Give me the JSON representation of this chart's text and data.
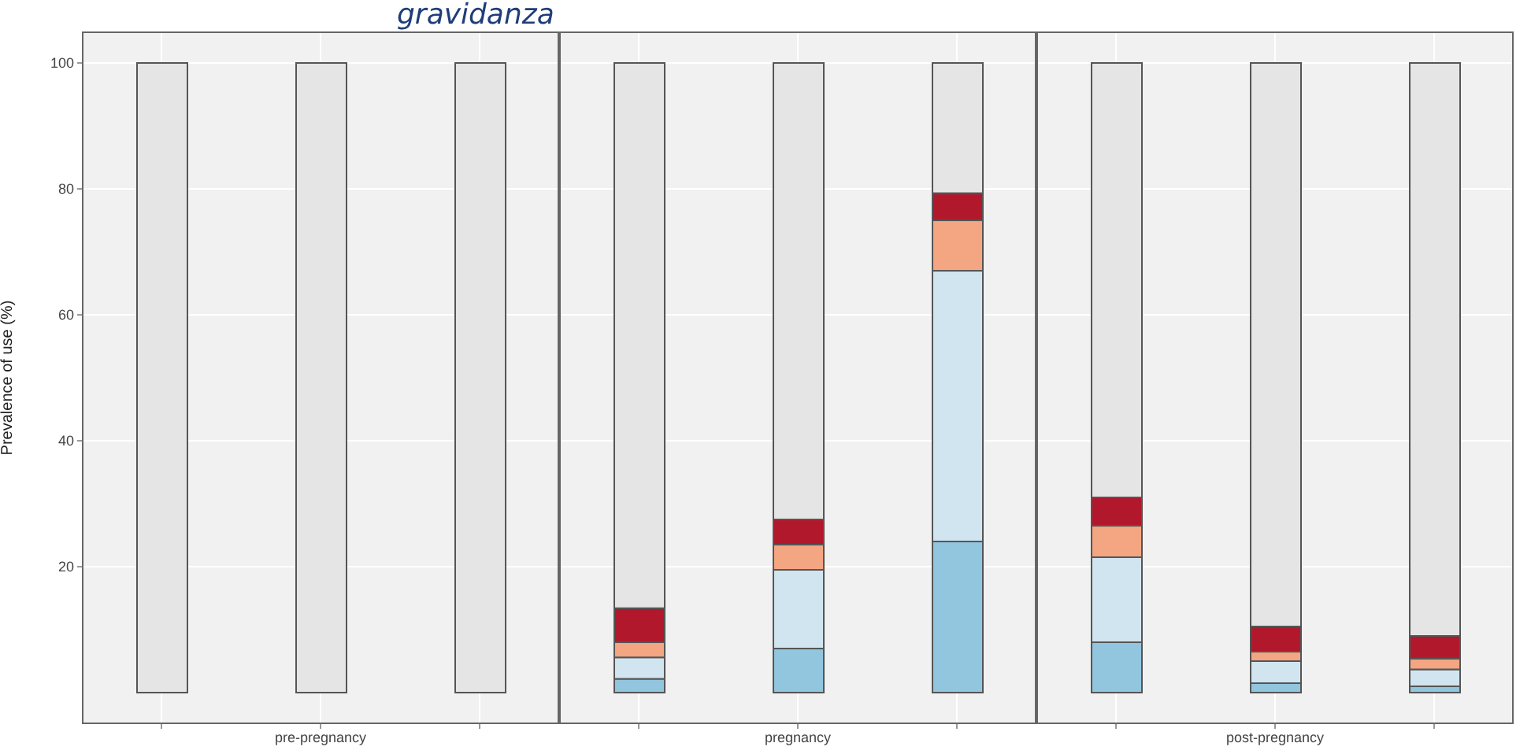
{
  "chart_data": [
    {
      "type": "bar",
      "stacked": true,
      "ylabel": "Prevalence of use (%)",
      "annotations": [
        "gravidanza"
      ],
      "categories": [
        null,
        "pre-pregnancy",
        null
      ],
      "ylim": [
        -5,
        105
      ],
      "yticks": [
        20,
        40,
        60,
        80,
        100
      ],
      "grid": true,
      "series": [
        {
          "color": "#92c5de",
          "values": [
            0,
            0,
            0
          ]
        },
        {
          "color": "#d1e5f0",
          "values": [
            0,
            0,
            0
          ]
        },
        {
          "color": "#f4a582",
          "values": [
            0,
            0,
            0
          ]
        },
        {
          "color": "#b2182b",
          "values": [
            0,
            0,
            0
          ]
        },
        {
          "color": "#e5e5e5",
          "values": [
            100,
            100,
            100
          ]
        }
      ]
    },
    {
      "type": "bar",
      "stacked": true,
      "categories": [
        null,
        "pregnancy",
        null
      ],
      "ylim": [
        -5,
        105
      ],
      "yticks": [
        20,
        40,
        60,
        80,
        100
      ],
      "grid": true,
      "tick_labels": "x",
      "series": [
        {
          "color": "#92c5de",
          "values": [
            2.2,
            7,
            24
          ]
        },
        {
          "color": "#d1e5f0",
          "values": [
            3.4,
            12.5,
            43
          ]
        },
        {
          "color": "#f4a582",
          "values": [
            2.4,
            4,
            8
          ]
        },
        {
          "color": "#b2182b",
          "values": [
            5.4,
            4,
            4.3
          ]
        },
        {
          "color": "#e5e5e5",
          "values": [
            86.6,
            72.5,
            20.7
          ]
        }
      ]
    },
    {
      "type": "bar",
      "stacked": true,
      "categories": [
        null,
        "post-pregnancy",
        null
      ],
      "ylim": [
        -5,
        105
      ],
      "yticks": [
        20,
        40,
        60,
        80,
        100
      ],
      "grid": true,
      "tick_labels": "x",
      "series": [
        {
          "color": "#92c5de",
          "values": [
            8,
            1.5,
            1
          ]
        },
        {
          "color": "#d1e5f0",
          "values": [
            13.5,
            3.5,
            2.7
          ]
        },
        {
          "color": "#f4a582",
          "values": [
            5,
            1.5,
            1.7
          ]
        },
        {
          "color": "#b2182b",
          "values": [
            4.5,
            4,
            3.6
          ]
        },
        {
          "color": "#e5e5e5",
          "values": [
            69,
            89.5,
            91
          ]
        }
      ]
    }
  ]
}
